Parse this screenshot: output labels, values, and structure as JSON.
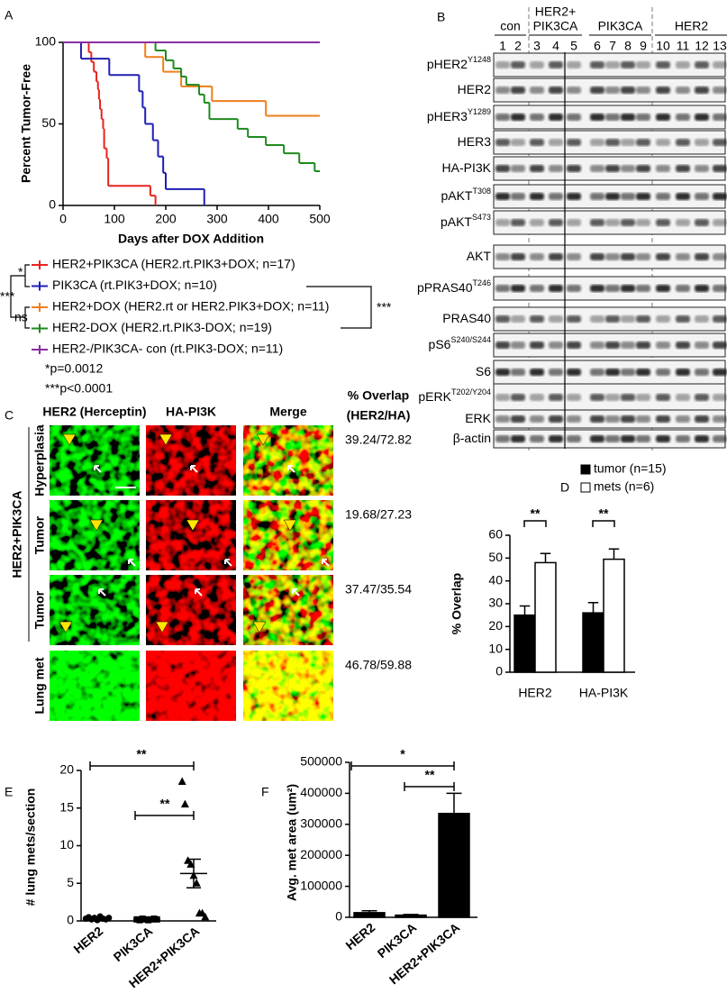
{
  "chart_data": [
    {
      "type": "line",
      "panel": "A",
      "ylabel": "Percent Tumor-Free",
      "xlabel": "Days after DOX Addition",
      "xlim": [
        0,
        500
      ],
      "xticks": [
        0,
        100,
        200,
        300,
        400,
        500
      ],
      "ylim": [
        0,
        100
      ],
      "yticks": [
        0,
        50,
        100
      ],
      "series": [
        {
          "name": "HER2+PIK3CA (HER2.rt.PIK3+DOX; n=17)",
          "color": "#e8231e",
          "x": [
            0,
            50,
            55,
            60,
            65,
            68,
            70,
            72,
            75,
            78,
            80,
            85,
            88,
            170,
            180
          ],
          "values": [
            100,
            94,
            88,
            82,
            76,
            71,
            65,
            59,
            53,
            47,
            35,
            29,
            12,
            6,
            0
          ]
        },
        {
          "name": "PIK3CA (rt.PIK3+DOX; n=10)",
          "color": "#1f1fb4",
          "x": [
            0,
            35,
            90,
            148,
            155,
            160,
            175,
            185,
            195,
            200,
            275
          ],
          "values": [
            100,
            90,
            80,
            70,
            60,
            50,
            40,
            30,
            20,
            10,
            0
          ]
        },
        {
          "name": "HER2+DOX (HER2.rt or HER2.PIK3+DOX; n=11)",
          "color": "#f07f1a",
          "x": [
            0,
            160,
            195,
            230,
            290,
            395,
            500
          ],
          "values": [
            100,
            91,
            82,
            73,
            64,
            55,
            55
          ]
        },
        {
          "name": "HER2-DOX (HER2.rt.PIK3-DOX; n=19)",
          "color": "#1e8a1e",
          "x": [
            0,
            180,
            200,
            215,
            230,
            240,
            265,
            275,
            285,
            340,
            360,
            395,
            430,
            460,
            490,
            500
          ],
          "values": [
            100,
            95,
            89,
            84,
            79,
            74,
            68,
            63,
            53,
            47,
            42,
            37,
            32,
            26,
            21,
            21
          ]
        },
        {
          "name": "HER2-/PIK3CA- con (rt.PIK3-DOX; n=11)",
          "color": "#8b2ea0",
          "x": [
            0,
            500
          ],
          "values": [
            100,
            100
          ]
        }
      ],
      "annotations": [
        "*",
        "***",
        "ns",
        "***"
      ],
      "footnotes": [
        "*p=0.0012",
        "***p<0.0001"
      ]
    },
    {
      "type": "bar",
      "panel": "D",
      "ylabel": "% Overlap",
      "categories": [
        "HER2",
        "HA-PI3K"
      ],
      "ylim": [
        0,
        60
      ],
      "yticks": [
        0,
        10,
        20,
        30,
        40,
        50,
        60
      ],
      "series": [
        {
          "name": "tumor (n=15)",
          "color": "#000000",
          "values": [
            25,
            26
          ],
          "errors": [
            4,
            4.5
          ]
        },
        {
          "name": "mets (n=6)",
          "color": "#ffffff",
          "values": [
            48,
            49.5
          ],
          "errors": [
            4,
            4.5
          ]
        }
      ],
      "annotations": [
        "**",
        "**"
      ]
    },
    {
      "type": "scatter",
      "panel": "E",
      "ylabel": "# lung mets/section",
      "categories": [
        "HER2",
        "PIK3CA",
        "HER2+PIK3CA"
      ],
      "markers": [
        "circle",
        "square",
        "triangle"
      ],
      "points": [
        [
          0.3,
          0.5,
          0.2,
          0.4,
          0.1,
          0.6,
          0.3,
          0.2,
          0.4
        ],
        [
          0.2,
          0.1,
          0.3,
          0.2,
          0.1,
          0.2,
          0.3,
          0.2
        ],
        [
          18.5,
          15.5,
          8,
          7.5,
          6,
          5,
          1,
          1,
          0.5
        ]
      ],
      "means": [
        0.3,
        0.2,
        6.3
      ],
      "errors": [
        0.1,
        0.05,
        1.9
      ],
      "ylim": [
        0,
        20
      ],
      "yticks": [
        0,
        5,
        10,
        15,
        20
      ],
      "annotations": [
        "**",
        "**"
      ]
    },
    {
      "type": "bar",
      "panel": "F",
      "ylabel": "Avg. met area (um²)",
      "categories": [
        "HER2",
        "PIK3CA",
        "HER2+PIK3CA"
      ],
      "values": [
        15000,
        7000,
        335000
      ],
      "errors": [
        6000,
        2000,
        65000
      ],
      "color": "#000000",
      "ylim": [
        0,
        500000
      ],
      "yticks": [
        0,
        100000,
        200000,
        300000,
        400000,
        500000
      ],
      "annotations": [
        "*",
        "**"
      ]
    }
  ],
  "blot": {
    "panel": "B",
    "groups": [
      {
        "label": [
          "con"
        ],
        "lanes": [
          "1",
          "2"
        ]
      },
      {
        "label": [
          "HER2+",
          "PIK3CA"
        ],
        "lanes": [
          "3",
          "4",
          "5"
        ]
      },
      {
        "label": [
          "PIK3CA"
        ],
        "lanes": [
          "6",
          "7",
          "8",
          "9"
        ]
      },
      {
        "label": [
          "HER2"
        ],
        "lanes": [
          "10",
          "11",
          "12",
          "13"
        ]
      }
    ],
    "rows": [
      {
        "name": "pHER2",
        "site": "Y1248"
      },
      {
        "name": "HER2"
      },
      {
        "name": "pHER3",
        "site": "Y1289"
      },
      {
        "name": "HER3"
      },
      {
        "name": "HA-PI3K"
      },
      {
        "name": "pAKT",
        "site": "T308"
      },
      {
        "name": "pAKT",
        "site": "S473"
      },
      {
        "name": "AKT"
      },
      {
        "name": "pPRAS40",
        "site": "T246"
      },
      {
        "name": "PRAS40"
      },
      {
        "name": "pS6",
        "site": "S240/S244"
      },
      {
        "name": "S6"
      },
      {
        "name": "pERK",
        "site": "T202/Y204"
      },
      {
        "name": "ERK"
      },
      {
        "name": "β-actin"
      }
    ]
  },
  "microscopy": {
    "panel": "C",
    "columns": [
      "HER2 (Herceptin)",
      "HA-PI3K",
      "Merge"
    ],
    "overlap_header": [
      "% Overlap",
      "(HER2/HA)"
    ],
    "group": "HER2+PIK3CA",
    "rows": [
      {
        "label": "Hyperplasia",
        "overlap": "39.24/72.82"
      },
      {
        "label": "Tumor",
        "overlap": "19.68/27.23"
      },
      {
        "label": "Tumor",
        "overlap": "37.47/35.54"
      },
      {
        "label": "Lung met",
        "overlap": "46.78/59.88"
      }
    ]
  }
}
